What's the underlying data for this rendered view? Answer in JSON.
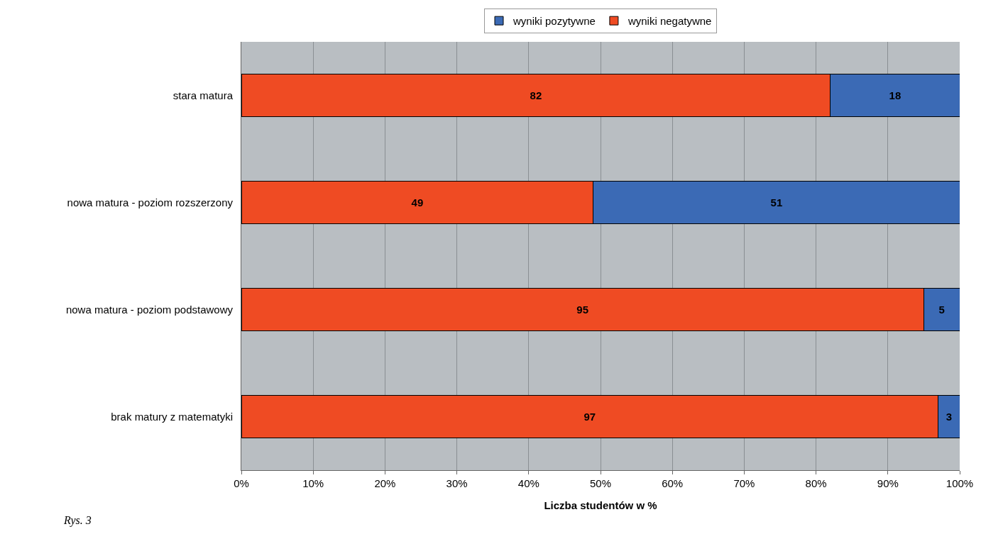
{
  "chart_data": {
    "type": "bar",
    "orientation": "horizontal",
    "stacked": true,
    "xlabel": "Liczba studentów w %",
    "categories": [
      "stara matura",
      "nowa matura - poziom rozszerzony",
      "nowa matura - poziom podstawowy",
      "brak matury z matematyki"
    ],
    "series": [
      {
        "name": "wyniki negatywne",
        "color": "#ef4b23",
        "values": [
          82,
          49,
          95,
          97
        ]
      },
      {
        "name": "wyniki pozytywne",
        "color": "#3b6ab5",
        "values": [
          18,
          51,
          5,
          3
        ]
      }
    ],
    "xlim": [
      0,
      100
    ],
    "xticks": [
      {
        "value": 0,
        "label": "0%"
      },
      {
        "value": 10,
        "label": "10%"
      },
      {
        "value": 20,
        "label": "20%"
      },
      {
        "value": 30,
        "label": "30%"
      },
      {
        "value": 40,
        "label": "40%"
      },
      {
        "value": 50,
        "label": "50%"
      },
      {
        "value": 60,
        "label": "60%"
      },
      {
        "value": 70,
        "label": "70%"
      },
      {
        "value": 80,
        "label": "80%"
      },
      {
        "value": 90,
        "label": "90%"
      },
      {
        "value": 100,
        "label": "100%"
      }
    ],
    "grid": "x",
    "legend": "top",
    "data_labels": true,
    "annotations": [
      "Rys. 3"
    ]
  }
}
